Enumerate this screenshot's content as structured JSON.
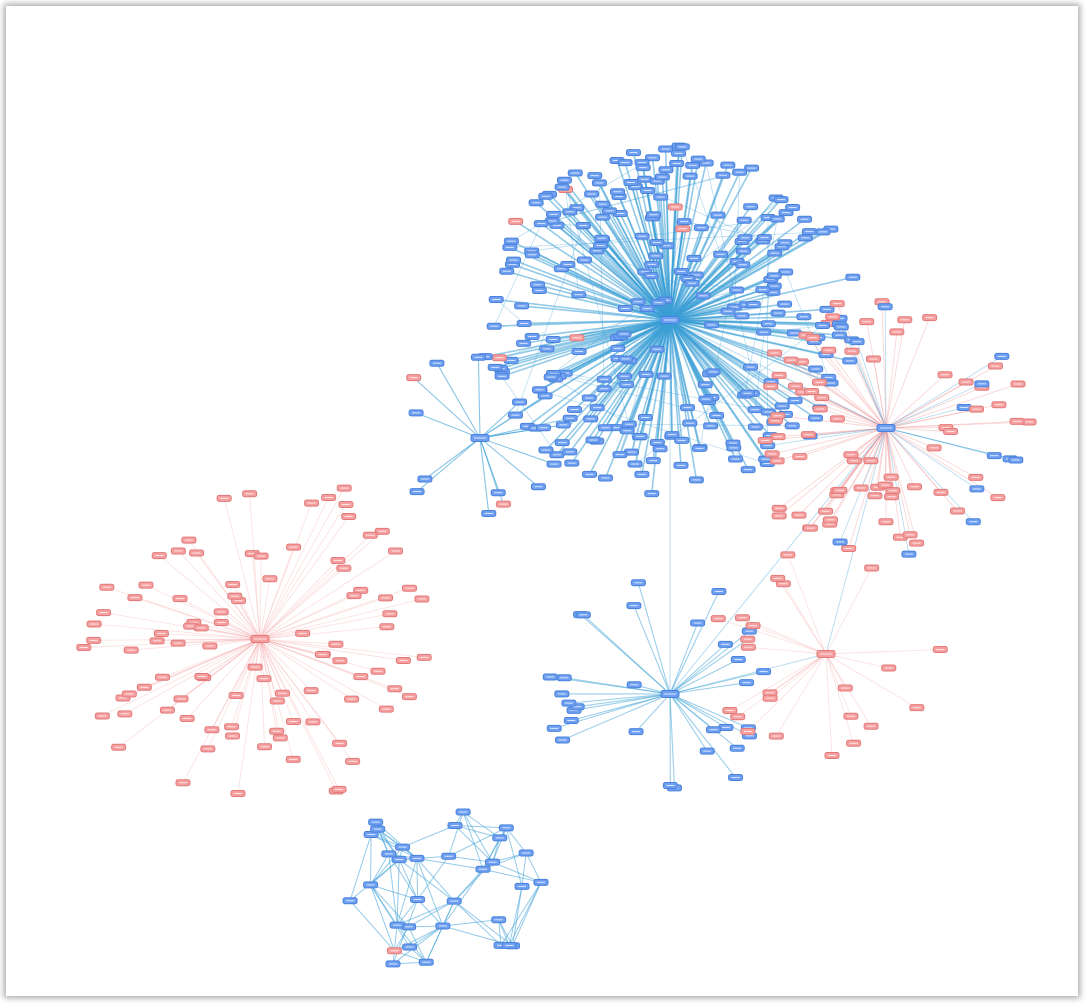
{
  "diagram": {
    "type": "network-graph",
    "node_label_visibility": "illegible",
    "colors": {
      "group_a": "#6e9ff0",
      "group_a_edges": "#3a9fd6",
      "group_b": "#f5a0a0",
      "group_b_edges": "#f28b8b",
      "background": "#ffffff"
    },
    "clusters": [
      {
        "id": "c1",
        "color": "blue",
        "hub_count": 1,
        "leaf_count": 260,
        "description_key": "dense-hub"
      },
      {
        "id": "c2",
        "color": "blue",
        "hub_count": 1,
        "leaf_count": 16
      },
      {
        "id": "c3",
        "color": "red",
        "hub_count": 1,
        "leaf_count": 95
      },
      {
        "id": "c4",
        "color": "mixed",
        "hub_count": 1,
        "leaf_count": 90
      },
      {
        "id": "c5",
        "color": "blue",
        "hub_count": 1,
        "leaf_count": 32
      },
      {
        "id": "c6",
        "color": "red",
        "hub_count": 1,
        "leaf_count": 22
      },
      {
        "id": "c7",
        "color": "blue",
        "hub_count": 0,
        "leaf_count": 32
      }
    ]
  }
}
